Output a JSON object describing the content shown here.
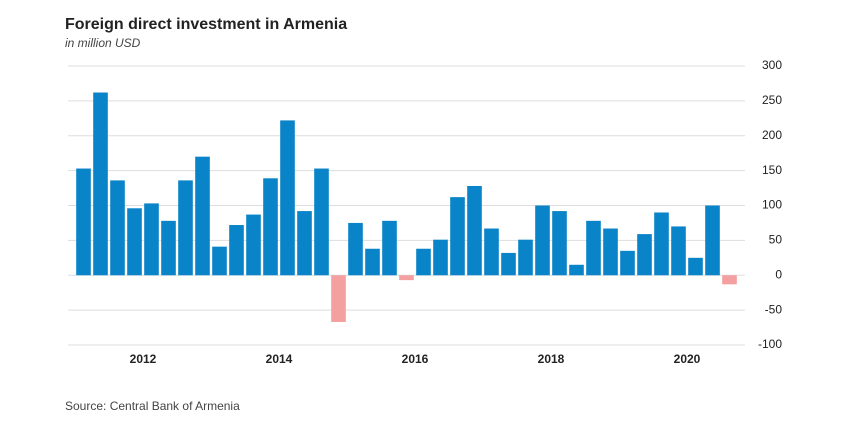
{
  "chart_data": {
    "type": "bar",
    "title": "Foreign direct investment in Armenia",
    "subtitle": "in million USD",
    "source": "Source: Central Bank of Armenia",
    "categories": [
      null,
      null,
      null,
      null,
      "2012",
      null,
      null,
      null,
      null,
      null,
      null,
      null,
      "2014",
      null,
      null,
      null,
      null,
      null,
      null,
      null,
      "2016",
      null,
      null,
      null,
      null,
      null,
      null,
      null,
      "2018",
      null,
      null,
      null,
      null,
      null,
      null,
      null,
      "2020",
      null,
      null
    ],
    "values": [
      153,
      262,
      136,
      96,
      103,
      78,
      136,
      170,
      41,
      72,
      87,
      139,
      222,
      92,
      153,
      -67,
      75,
      38,
      78,
      -7,
      38,
      51,
      112,
      128,
      67,
      32,
      51,
      100,
      92,
      15,
      78,
      67,
      35,
      59,
      90,
      70,
      25,
      100,
      -13
    ],
    "color": "#0a84c8",
    "negative_color": "#f4a0a0",
    "ylim": [
      -100,
      300
    ],
    "yticks": [
      -100,
      -50,
      0,
      50,
      100,
      150,
      200,
      250,
      300
    ],
    "grid": true
  }
}
